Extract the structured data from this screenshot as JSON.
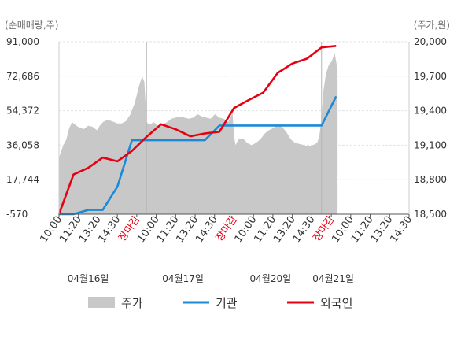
{
  "chart_data": {
    "type": "line",
    "title": "",
    "left_axis": {
      "unit": "(순매매량,주)",
      "ticks": [
        "91,000",
        "72,686",
        "54,372",
        "36,058",
        "17,744",
        "-570"
      ],
      "range": [
        -570,
        91000
      ]
    },
    "right_axis": {
      "unit": "(주가,원)",
      "ticks": [
        "20,000",
        "19,700",
        "19,400",
        "19,100",
        "18,800",
        "18,500"
      ],
      "range": [
        18500,
        20000
      ]
    },
    "x_slots": 24,
    "x_ticks": [
      {
        "label": "10:00",
        "red": false
      },
      {
        "label": "11:20",
        "red": false
      },
      {
        "label": "13:20",
        "red": false
      },
      {
        "label": "14:30",
        "red": false
      },
      {
        "label": "장마감",
        "red": true
      },
      {
        "label": "10:00",
        "red": false
      },
      {
        "label": "11:20",
        "red": false
      },
      {
        "label": "13:20",
        "red": false
      },
      {
        "label": "14:30",
        "red": false
      },
      {
        "label": "장마감",
        "red": true
      },
      {
        "label": "10:00",
        "red": false
      },
      {
        "label": "11:20",
        "red": false
      },
      {
        "label": "13:20",
        "red": false
      },
      {
        "label": "14:30",
        "red": false
      },
      {
        "label": "장마감",
        "red": true
      },
      {
        "label": "10:00",
        "red": false
      },
      {
        "label": "11:20",
        "red": false
      },
      {
        "label": "13:20",
        "red": false
      },
      {
        "label": "14:30",
        "red": false
      }
    ],
    "dates": [
      {
        "label": "04월16일",
        "slot": 2
      },
      {
        "label": "04월17일",
        "slot": 8.5
      },
      {
        "label": "04월20일",
        "slot": 14.5
      },
      {
        "label": "04월21일",
        "slot": 18.8
      }
    ],
    "day_dividers": [
      6,
      12,
      18
    ],
    "price": {
      "name": "주가",
      "color": "#c8c8c8",
      "axis": "right",
      "x": [
        0,
        0.15,
        0.3,
        0.5,
        0.7,
        0.9,
        1.1,
        1.3,
        1.5,
        1.7,
        2.0,
        2.3,
        2.6,
        2.8,
        3.0,
        3.3,
        3.6,
        4.0,
        4.3,
        4.6,
        4.9,
        5.2,
        5.5,
        5.7,
        5.85,
        6.0,
        6.2,
        6.5,
        6.8,
        7.1,
        7.4,
        7.7,
        8.0,
        8.3,
        8.6,
        8.9,
        9.2,
        9.5,
        9.8,
        10.1,
        10.4,
        10.7,
        11.0,
        11.3,
        11.6,
        11.9,
        12.0,
        12.1,
        12.3,
        12.6,
        12.9,
        13.2,
        13.5,
        13.8,
        14.1,
        14.4,
        14.7,
        15.0,
        15.3,
        15.6,
        15.9,
        16.2,
        16.5,
        16.8,
        17.1,
        17.4,
        17.7,
        17.85,
        18.0,
        18.1,
        18.3,
        18.5,
        18.7,
        18.9,
        19.1
      ],
      "y": [
        18990,
        19050,
        19100,
        19150,
        19250,
        19300,
        19280,
        19260,
        19250,
        19240,
        19270,
        19260,
        19230,
        19270,
        19300,
        19320,
        19310,
        19290,
        19290,
        19310,
        19370,
        19470,
        19620,
        19700,
        19650,
        19300,
        19280,
        19300,
        19270,
        19280,
        19300,
        19330,
        19340,
        19350,
        19340,
        19330,
        19340,
        19370,
        19350,
        19340,
        19330,
        19370,
        19340,
        19330,
        19300,
        19380,
        19180,
        19100,
        19150,
        19160,
        19120,
        19100,
        19120,
        19150,
        19200,
        19230,
        19250,
        19280,
        19260,
        19210,
        19150,
        19120,
        19110,
        19100,
        19090,
        19100,
        19120,
        19180,
        19340,
        19550,
        19720,
        19800,
        19830,
        19900,
        19760
      ]
    },
    "series": [
      {
        "name": "기관",
        "color": "#1c8ad6",
        "axis": "left",
        "x": [
          0,
          1,
          2,
          3,
          4,
          5,
          6,
          7,
          8,
          9,
          10,
          11,
          12,
          13,
          14,
          15,
          16,
          17,
          18,
          19
        ],
        "y": [
          -570,
          -570,
          1700,
          1700,
          14000,
          38700,
          38700,
          38700,
          38700,
          38700,
          38700,
          46500,
          46500,
          46500,
          46500,
          46500,
          46500,
          46500,
          46500,
          62000
        ]
      },
      {
        "name": "외국인",
        "color": "#e60012",
        "axis": "left",
        "x": [
          0,
          1,
          2,
          3,
          4,
          5,
          6,
          7,
          8,
          9,
          10,
          11,
          12,
          13,
          14,
          15,
          16,
          17,
          18,
          19
        ],
        "y": [
          -570,
          20500,
          24000,
          29500,
          27500,
          33000,
          40500,
          47200,
          44500,
          40800,
          42300,
          43200,
          55800,
          60000,
          64000,
          74500,
          79400,
          82000,
          88000,
          88800
        ]
      }
    ]
  }
}
